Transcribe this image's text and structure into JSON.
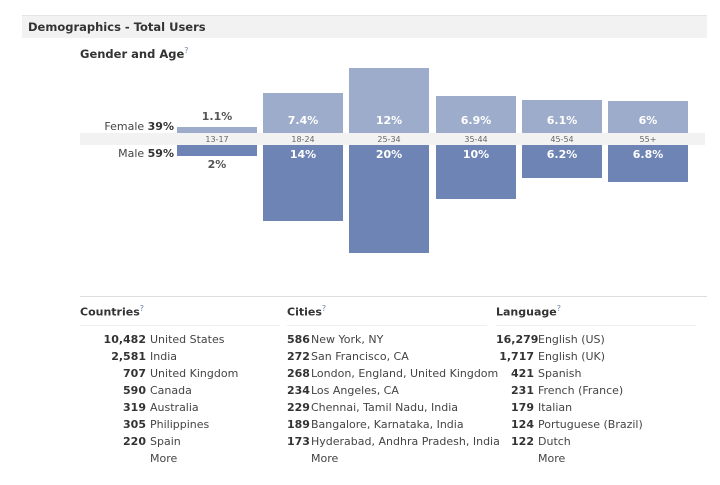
{
  "header": {
    "title": "Demographics - Total Users"
  },
  "gender_age": {
    "title": "Gender and Age",
    "help": "?",
    "female_label": "Female",
    "female_pct": "39%",
    "male_label": "Male",
    "male_pct": "59%"
  },
  "chart_data": {
    "type": "bar",
    "categories": [
      "13-17",
      "18-24",
      "25-34",
      "35-44",
      "45-54",
      "55+"
    ],
    "series": [
      {
        "name": "Female",
        "values": [
          1.1,
          7.4,
          12,
          6.9,
          6.1,
          6
        ],
        "labels": [
          "1.1%",
          "7.4%",
          "12%",
          "6.9%",
          "6.1%",
          "6%"
        ],
        "color": "#9eaccb"
      },
      {
        "name": "Male",
        "values": [
          2,
          14,
          20,
          10,
          6.2,
          6.8
        ],
        "labels": [
          "2%",
          "14%",
          "20%",
          "10%",
          "6.2%",
          "6.8%"
        ],
        "color": "#6d84b4"
      }
    ]
  },
  "lists": [
    {
      "title": "Countries",
      "help": "?",
      "more": "More",
      "numw": 66,
      "items": [
        [
          "10,482",
          "United States"
        ],
        [
          "2,581",
          "India"
        ],
        [
          "707",
          "United Kingdom"
        ],
        [
          "590",
          "Canada"
        ],
        [
          "319",
          "Australia"
        ],
        [
          "305",
          "Philippines"
        ],
        [
          "220",
          "Spain"
        ]
      ]
    },
    {
      "title": "Cities",
      "help": "?",
      "more": "More",
      "numw": 20,
      "items": [
        [
          "586",
          "New York, NY"
        ],
        [
          "272",
          "San Francisco, CA"
        ],
        [
          "268",
          "London, England, United Kingdom"
        ],
        [
          "234",
          "Los Angeles, CA"
        ],
        [
          "229",
          "Chennai, Tamil Nadu, India"
        ],
        [
          "189",
          "Bangalore, Karnataka, India"
        ],
        [
          "173",
          "Hyderabad, Andhra Pradesh, India"
        ]
      ]
    },
    {
      "title": "Language",
      "help": "?",
      "more": "More",
      "numw": 38,
      "items": [
        [
          "16,279",
          "English (US)"
        ],
        [
          "1,717",
          "English (UK)"
        ],
        [
          "421",
          "Spanish"
        ],
        [
          "231",
          "French (France)"
        ],
        [
          "179",
          "Italian"
        ],
        [
          "124",
          "Portuguese (Brazil)"
        ],
        [
          "122",
          "Dutch"
        ]
      ]
    }
  ]
}
